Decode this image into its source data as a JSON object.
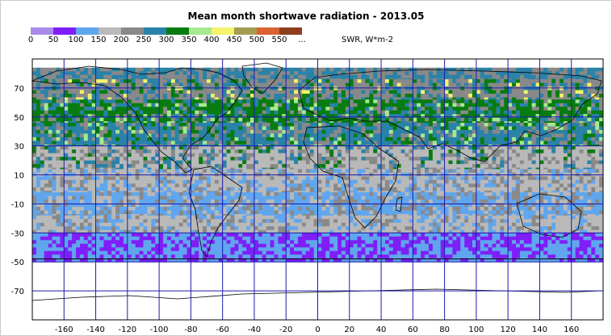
{
  "chart_data": {
    "type": "heatmap",
    "title": "Mean month shortwave radiation - 2013.05",
    "unit_label": "SWR, W*m-2",
    "legend": {
      "labels": [
        "0",
        "50",
        "100",
        "150",
        "200",
        "250",
        "300",
        "350",
        "400",
        "450",
        "500",
        "550",
        "..."
      ],
      "colors": [
        "#a98bea",
        "#7f1ff7",
        "#60a6ee",
        "#b9b9b9",
        "#898989",
        "#2a82a8",
        "#087c10",
        "#a6e98e",
        "#f4f36b",
        "#a39c53",
        "#db6332",
        "#8f3d1f"
      ]
    },
    "x_axis": {
      "ticks": [
        -160,
        -140,
        -120,
        -100,
        -80,
        -60,
        -40,
        -20,
        0,
        20,
        40,
        60,
        80,
        100,
        120,
        140,
        160
      ],
      "range": [
        -180,
        180
      ]
    },
    "y_axis": {
      "ticks": [
        70,
        50,
        30,
        10,
        -10,
        -30,
        -50,
        -70
      ],
      "range": [
        -90,
        90
      ]
    },
    "data_extent_lat": [
      -48,
      84
    ],
    "grid": true,
    "zonal_dominant_classes": [
      {
        "lat_from": 84,
        "lat_to": 76,
        "classes": [
          "250",
          "200"
        ]
      },
      {
        "lat_from": 76,
        "lat_to": 62,
        "classes": [
          "200",
          "250",
          "300",
          "400"
        ]
      },
      {
        "lat_from": 62,
        "lat_to": 46,
        "classes": [
          "300",
          "250",
          "200",
          "350"
        ]
      },
      {
        "lat_from": 46,
        "lat_to": 30,
        "classes": [
          "250",
          "200",
          "300",
          "350"
        ]
      },
      {
        "lat_from": 30,
        "lat_to": 14,
        "classes": [
          "150",
          "200",
          "250",
          "300"
        ]
      },
      {
        "lat_from": 14,
        "lat_to": -2,
        "classes": [
          "150",
          "100",
          "200"
        ]
      },
      {
        "lat_from": -2,
        "lat_to": -18,
        "classes": [
          "100",
          "150",
          "200"
        ]
      },
      {
        "lat_from": -18,
        "lat_to": -30,
        "classes": [
          "150",
          "100",
          "200"
        ]
      },
      {
        "lat_from": -30,
        "lat_to": -48,
        "classes": [
          "100",
          "50"
        ]
      }
    ]
  }
}
